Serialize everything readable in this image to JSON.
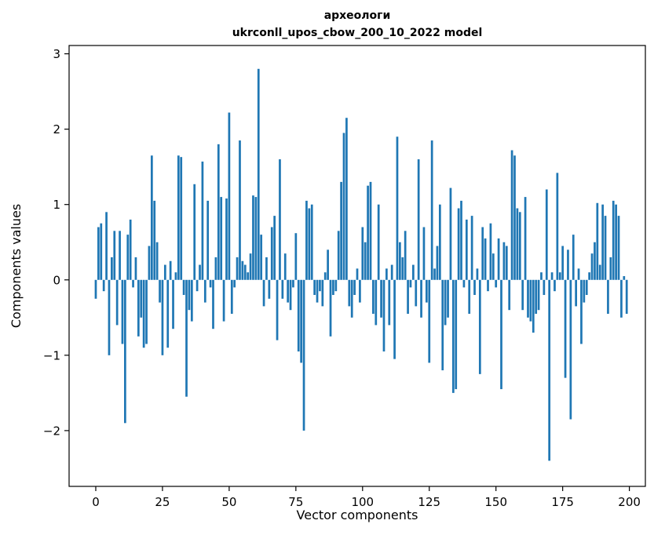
{
  "figure": {
    "title_line1": "археологи",
    "title_line2": "ukrconll_upos_cbow_200_10_2022 model",
    "xlabel": "Vector components",
    "ylabel": "Components values"
  },
  "chart_data": {
    "type": "bar",
    "title": "археологи",
    "subtitle": "ukrconll_upos_cbow_200_10_2022 model",
    "xlabel": "Vector components",
    "ylabel": "Components values",
    "bar_color": "#1f77b4",
    "grid": false,
    "legend": false,
    "xlim": [
      -10,
      206
    ],
    "ylim": [
      -2.74,
      3.11
    ],
    "bar_width": 0.8,
    "xticks": [
      0,
      25,
      50,
      75,
      100,
      125,
      150,
      175,
      200
    ],
    "yticks": [
      {
        "v": 3,
        "label": "3"
      },
      {
        "v": 2,
        "label": "2"
      },
      {
        "v": 1,
        "label": "1"
      },
      {
        "v": 0,
        "label": "0"
      },
      {
        "v": -1,
        "label": "−1"
      },
      {
        "v": -2,
        "label": "−2"
      }
    ],
    "values": [
      -0.25,
      0.7,
      0.75,
      -0.15,
      0.9,
      -1.0,
      0.3,
      0.65,
      -0.6,
      0.65,
      -0.85,
      -1.9,
      0.6,
      0.8,
      -0.1,
      0.3,
      -0.75,
      -0.5,
      -0.9,
      -0.85,
      0.45,
      1.65,
      1.05,
      0.5,
      -0.3,
      -1.0,
      0.2,
      -0.9,
      0.25,
      -0.65,
      0.1,
      1.65,
      1.63,
      -0.2,
      -1.55,
      -0.4,
      -0.55,
      1.27,
      -0.15,
      0.2,
      1.57,
      -0.3,
      1.05,
      -0.1,
      -0.65,
      0.3,
      1.8,
      1.1,
      -0.55,
      1.08,
      2.22,
      -0.45,
      -0.1,
      0.3,
      1.85,
      0.25,
      0.2,
      0.1,
      0.35,
      1.12,
      1.1,
      2.8,
      0.6,
      -0.35,
      0.3,
      -0.25,
      0.7,
      0.85,
      -0.8,
      1.6,
      -0.25,
      0.35,
      -0.3,
      -0.4,
      -0.1,
      0.62,
      -0.95,
      -1.1,
      -2.0,
      1.05,
      0.95,
      1.0,
      -0.2,
      -0.3,
      -0.15,
      -0.35,
      0.1,
      0.4,
      -0.75,
      -0.2,
      -0.15,
      0.65,
      1.3,
      1.95,
      2.15,
      -0.35,
      -0.5,
      -0.2,
      0.15,
      -0.3,
      0.7,
      0.5,
      1.25,
      1.3,
      -0.45,
      -0.6,
      1.0,
      -0.5,
      -0.95,
      0.15,
      -0.6,
      0.2,
      -1.05,
      1.9,
      0.5,
      0.3,
      0.65,
      -0.45,
      -0.1,
      0.2,
      -0.35,
      1.6,
      -0.5,
      0.7,
      -0.3,
      -1.1,
      1.85,
      0.15,
      0.45,
      1.0,
      -1.2,
      -0.6,
      -0.5,
      1.22,
      -1.5,
      -1.45,
      0.95,
      1.05,
      -0.1,
      0.8,
      -0.45,
      0.85,
      -0.2,
      0.15,
      -1.25,
      0.7,
      0.55,
      -0.15,
      0.75,
      0.35,
      -0.1,
      0.55,
      -1.45,
      0.5,
      0.45,
      -0.4,
      1.72,
      1.65,
      0.95,
      0.9,
      -0.4,
      1.1,
      -0.5,
      -0.55,
      -0.7,
      -0.45,
      -0.4,
      0.1,
      -0.2,
      1.2,
      -2.4,
      0.1,
      -0.15,
      1.42,
      0.1,
      0.45,
      -1.3,
      0.4,
      -1.85,
      0.6,
      -0.35,
      0.15,
      -0.85,
      -0.3,
      -0.2,
      0.1,
      0.35,
      0.5,
      1.02,
      0.2,
      1.0,
      0.85,
      -0.45,
      0.3,
      1.05,
      1.0,
      0.85,
      -0.5,
      0.05,
      -0.45
    ]
  }
}
